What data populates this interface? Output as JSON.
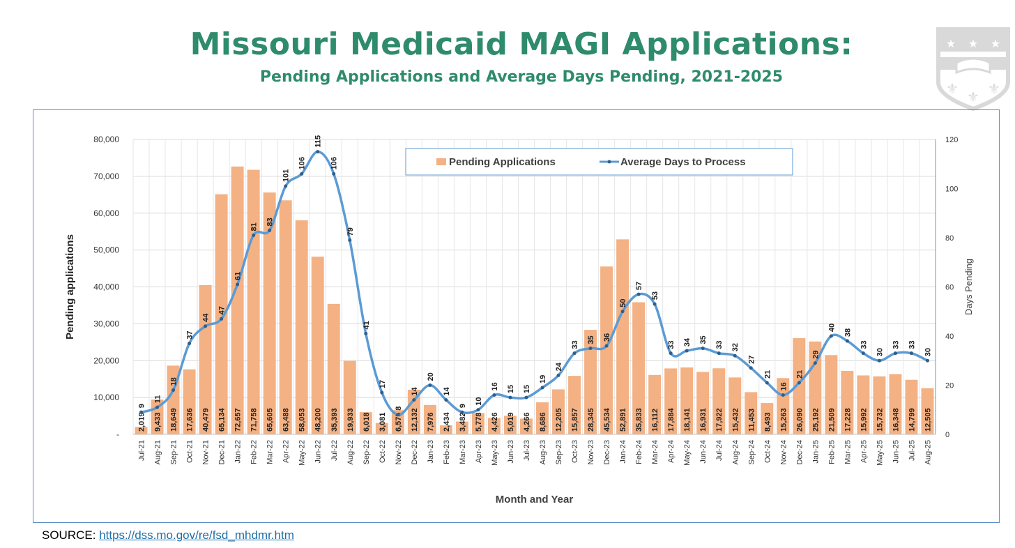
{
  "header": {
    "title": "Missouri Medicaid MAGI Applications:",
    "subtitle": "Pending Applications and Average Days Pending, 2021-2025"
  },
  "source": {
    "label": "SOURCE: ",
    "link_text": "https://dss.mo.gov/re/fsd_mhdmr.htm"
  },
  "colors": {
    "title": "#2e8b6b",
    "bar": "#f4b183",
    "line": "#5b9bd5",
    "frame": "#5b8fc7",
    "logo": "#d9d9d9"
  },
  "chart_data": {
    "type": "bar",
    "title": "",
    "xlabel": "Month and Year",
    "ylabel": "Pending applications",
    "y2label": "Days Pending",
    "ylim": [
      0,
      80000
    ],
    "y2lim": [
      0,
      120
    ],
    "yticks": [
      "-",
      "10,000",
      "20,000",
      "30,000",
      "40,000",
      "50,000",
      "60,000",
      "70,000",
      "80,000"
    ],
    "y2ticks": [
      "0",
      "20",
      "40",
      "60",
      "80",
      "100",
      "120"
    ],
    "legend_position": "top-center",
    "categories": [
      "Jul-21",
      "Aug-21",
      "Sep-21",
      "Oct-21",
      "Nov-21",
      "Dec-21",
      "Jan-22",
      "Feb-22",
      "Mar-22",
      "Apr-22",
      "May-22",
      "Jun-22",
      "Jul-22",
      "Aug-22",
      "Sep-22",
      "Oct-22",
      "Nov-22",
      "Dec-22",
      "Jan-23",
      "Feb-23",
      "Mar-23",
      "Apr-23",
      "May-23",
      "Jun-23",
      "Jul-23",
      "Aug-23",
      "Sep-23",
      "Oct-23",
      "Nov-23",
      "Dec-23",
      "Jan-24",
      "Feb-24",
      "Mar-24",
      "Apr-24",
      "May-24",
      "Jun-24",
      "Jul-24",
      "Aug-24",
      "Sep-24",
      "Oct-24",
      "Nov-24",
      "Dec-24",
      "Jan-25",
      "Feb-25",
      "Mar-25",
      "Apr-25",
      "May-25",
      "Jun-25",
      "Jul-25",
      "Aug-25"
    ],
    "series": [
      {
        "name": "Pending Applications",
        "type": "bar",
        "axis": "left",
        "values": [
          2019,
          9433,
          18649,
          17636,
          40479,
          65134,
          72657,
          71758,
          65605,
          63488,
          58053,
          48200,
          35393,
          19933,
          6018,
          3081,
          6575,
          12132,
          7976,
          2434,
          3482,
          5778,
          4426,
          5019,
          4266,
          8686,
          12205,
          15857,
          28345,
          45534,
          52891,
          35833,
          16112,
          17884,
          18141,
          16931,
          17922,
          15432,
          11453,
          8493,
          15263,
          26090,
          25192,
          21509,
          17228,
          15992,
          15732,
          16348,
          14799,
          12505
        ],
        "labels": [
          "2,019",
          "9,433",
          "18,649",
          "17,636",
          "40,479",
          "65,134",
          "72,657",
          "71,758",
          "65,605",
          "63,488",
          "58,053",
          "48,200",
          "35,393",
          "19,933",
          "6,018",
          "3,081",
          "6,575",
          "12,132",
          "7,976",
          "2,434",
          "3,482",
          "5,778",
          "4,426",
          "5,019",
          "4,266",
          "8,686",
          "12,205",
          "15,857",
          "28,345",
          "45,534",
          "52,891",
          "35,833",
          "16,112",
          "17,884",
          "18,141",
          "16,931",
          "17,922",
          "15,432",
          "11,453",
          "8,493",
          "15,263",
          "26,090",
          "25,192",
          "21,509",
          "17,228",
          "15,992",
          "15,732",
          "16,348",
          "14,799",
          "12,505"
        ]
      },
      {
        "name": "Average Days to Process",
        "type": "line",
        "axis": "right",
        "values": [
          9,
          11,
          18,
          37,
          44,
          47,
          61,
          81,
          83,
          101,
          106,
          115,
          106,
          79,
          41,
          17,
          8,
          14,
          20,
          14,
          9,
          10,
          16,
          15,
          15,
          19,
          24,
          33,
          35,
          36,
          50,
          57,
          53,
          33,
          34,
          35,
          33,
          32,
          27,
          21,
          16,
          21,
          29,
          40,
          38,
          33,
          30,
          33,
          33,
          30
        ]
      }
    ]
  }
}
